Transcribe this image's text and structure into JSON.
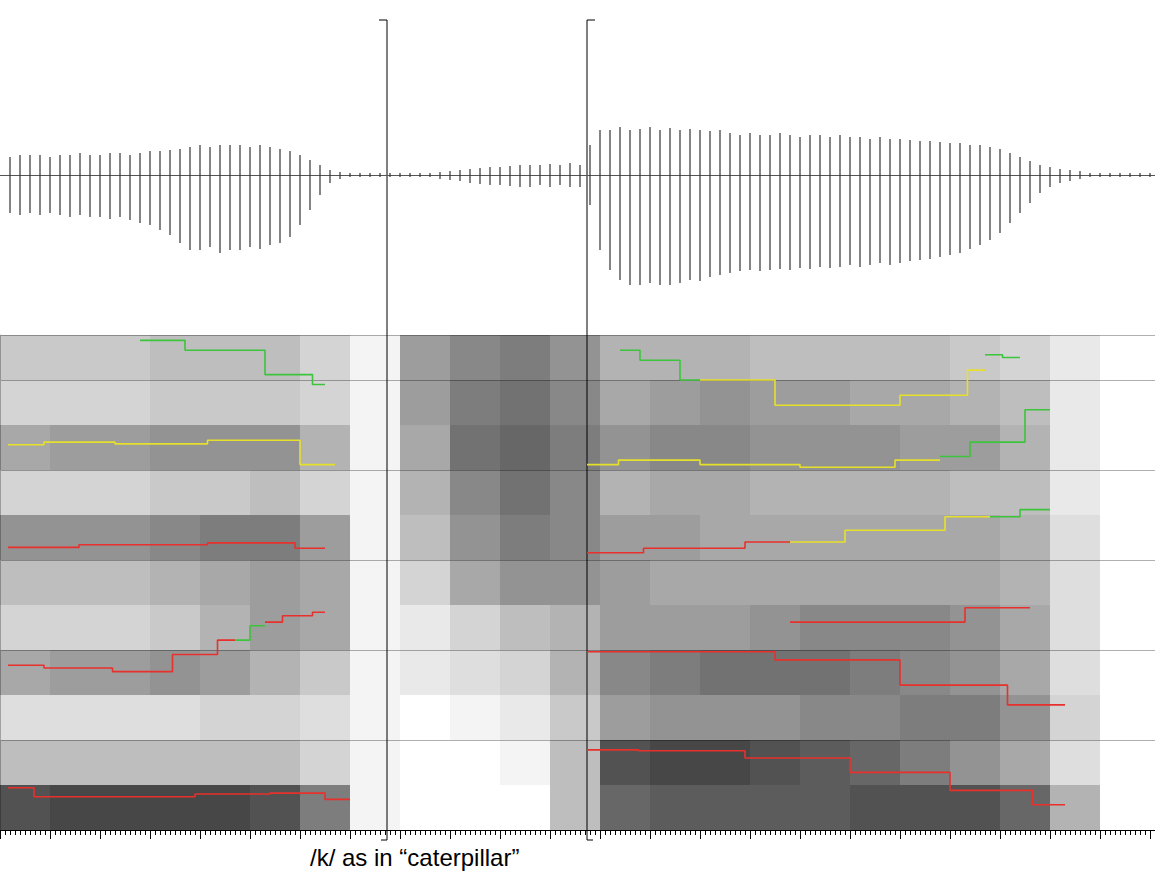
{
  "chart_data": {
    "type": "spectrogram",
    "title": "/k/ as in “caterpillar”",
    "xlim": [
      0,
      1155
    ],
    "xticks": [
      0,
      50,
      100,
      150,
      200,
      250,
      300,
      350,
      400,
      450,
      500,
      550,
      600,
      650,
      700,
      750,
      800,
      850,
      900,
      950,
      1000,
      1050,
      1100,
      1150
    ],
    "ylim": [
      0,
      5500
    ],
    "yticks": [
      0,
      1000,
      2000,
      3000,
      4000,
      5000
    ],
    "grid": true,
    "tick_labels": false,
    "boundaries": [
      387,
      587
    ],
    "spectrogram": {
      "time_bins": [
        0,
        50,
        100,
        150,
        200,
        250,
        300,
        350,
        400,
        450,
        500,
        550,
        600,
        650,
        700,
        750,
        800,
        850,
        900,
        950,
        1000,
        1050,
        1100,
        1150
      ],
      "freq_bins": [
        0,
        500,
        1000,
        1500,
        2000,
        2500,
        3000,
        3500,
        4000,
        4500,
        5000,
        5500
      ],
      "intensity": [
        [
          0.8,
          0.3,
          0.15,
          0.4,
          0.2,
          0.3,
          0.5,
          0.2,
          0.4,
          0.2,
          0.25
        ],
        [
          0.85,
          0.3,
          0.15,
          0.45,
          0.2,
          0.3,
          0.5,
          0.2,
          0.45,
          0.2,
          0.25
        ],
        [
          0.85,
          0.3,
          0.15,
          0.45,
          0.2,
          0.3,
          0.5,
          0.2,
          0.45,
          0.2,
          0.25
        ],
        [
          0.85,
          0.3,
          0.15,
          0.5,
          0.25,
          0.35,
          0.55,
          0.25,
          0.5,
          0.25,
          0.3
        ],
        [
          0.85,
          0.3,
          0.2,
          0.45,
          0.35,
          0.4,
          0.6,
          0.25,
          0.5,
          0.25,
          0.3
        ],
        [
          0.8,
          0.3,
          0.2,
          0.35,
          0.45,
          0.45,
          0.6,
          0.3,
          0.5,
          0.25,
          0.3
        ],
        [
          0.6,
          0.2,
          0.15,
          0.25,
          0.4,
          0.4,
          0.45,
          0.2,
          0.35,
          0.2,
          0.2
        ],
        [
          0.05,
          0.05,
          0.05,
          0.05,
          0.05,
          0.05,
          0.05,
          0.05,
          0.05,
          0.05,
          0.05
        ],
        [
          0,
          0,
          0,
          0.1,
          0.1,
          0.2,
          0.3,
          0.35,
          0.4,
          0.45,
          0.45
        ],
        [
          0,
          0,
          0.05,
          0.15,
          0.2,
          0.4,
          0.5,
          0.55,
          0.65,
          0.6,
          0.55
        ],
        [
          0,
          0.05,
          0.1,
          0.2,
          0.3,
          0.5,
          0.6,
          0.65,
          0.7,
          0.65,
          0.6
        ],
        [
          0.3,
          0.3,
          0.25,
          0.35,
          0.35,
          0.5,
          0.55,
          0.55,
          0.6,
          0.55,
          0.5
        ],
        [
          0.7,
          0.8,
          0.45,
          0.55,
          0.45,
          0.45,
          0.45,
          0.35,
          0.5,
          0.4,
          0.35
        ],
        [
          0.75,
          0.85,
          0.5,
          0.6,
          0.45,
          0.4,
          0.45,
          0.4,
          0.55,
          0.45,
          0.35
        ],
        [
          0.75,
          0.85,
          0.5,
          0.65,
          0.45,
          0.4,
          0.4,
          0.4,
          0.55,
          0.5,
          0.35
        ],
        [
          0.75,
          0.8,
          0.5,
          0.65,
          0.5,
          0.4,
          0.4,
          0.35,
          0.5,
          0.45,
          0.3
        ],
        [
          0.75,
          0.75,
          0.55,
          0.65,
          0.55,
          0.4,
          0.4,
          0.35,
          0.5,
          0.45,
          0.3
        ],
        [
          0.8,
          0.7,
          0.55,
          0.6,
          0.55,
          0.4,
          0.4,
          0.35,
          0.5,
          0.4,
          0.3
        ],
        [
          0.8,
          0.6,
          0.6,
          0.55,
          0.55,
          0.4,
          0.4,
          0.35,
          0.45,
          0.4,
          0.3
        ],
        [
          0.8,
          0.5,
          0.6,
          0.5,
          0.5,
          0.4,
          0.4,
          0.3,
          0.45,
          0.35,
          0.25
        ],
        [
          0.7,
          0.4,
          0.5,
          0.4,
          0.4,
          0.35,
          0.35,
          0.3,
          0.35,
          0.3,
          0.2
        ],
        [
          0.35,
          0.15,
          0.2,
          0.15,
          0.15,
          0.15,
          0.15,
          0.1,
          0.1,
          0.1,
          0.1
        ],
        [
          0,
          0,
          0,
          0,
          0,
          0,
          0,
          0,
          0,
          0,
          0
        ]
      ]
    },
    "waveform": {
      "ylim": [
        -1.3,
        0.6
      ],
      "x": [
        10,
        20,
        30,
        40,
        50,
        60,
        70,
        80,
        90,
        100,
        110,
        120,
        130,
        140,
        150,
        160,
        170,
        180,
        190,
        200,
        210,
        220,
        230,
        240,
        250,
        260,
        270,
        280,
        290,
        300,
        310,
        320,
        330,
        340,
        350,
        360,
        370,
        380,
        390,
        400,
        410,
        420,
        430,
        440,
        450,
        460,
        470,
        480,
        490,
        500,
        510,
        520,
        530,
        540,
        550,
        560,
        570,
        580,
        590,
        600,
        610,
        620,
        630,
        640,
        650,
        660,
        670,
        680,
        690,
        700,
        710,
        720,
        730,
        740,
        750,
        760,
        770,
        780,
        790,
        800,
        810,
        820,
        830,
        840,
        850,
        860,
        870,
        880,
        890,
        900,
        910,
        920,
        930,
        940,
        950,
        960,
        970,
        980,
        990,
        1000,
        1010,
        1020,
        1030,
        1040,
        1050,
        1060,
        1070,
        1080,
        1090,
        1100,
        1110,
        1120,
        1130,
        1140,
        1150
      ],
      "max": [
        0.18,
        0.2,
        0.2,
        0.2,
        0.18,
        0.2,
        0.2,
        0.22,
        0.2,
        0.2,
        0.22,
        0.22,
        0.2,
        0.22,
        0.24,
        0.24,
        0.25,
        0.26,
        0.28,
        0.3,
        0.28,
        0.3,
        0.3,
        0.3,
        0.28,
        0.3,
        0.28,
        0.26,
        0.24,
        0.2,
        0.15,
        0.1,
        0.05,
        0.03,
        0.02,
        0.02,
        0.02,
        0.02,
        0.02,
        0.02,
        0.02,
        0.02,
        0.02,
        0.03,
        0.04,
        0.05,
        0.06,
        0.07,
        0.08,
        0.08,
        0.09,
        0.1,
        0.1,
        0.1,
        0.11,
        0.1,
        0.12,
        0.1,
        0.3,
        0.45,
        0.45,
        0.48,
        0.45,
        0.46,
        0.48,
        0.45,
        0.47,
        0.45,
        0.46,
        0.45,
        0.44,
        0.45,
        0.42,
        0.4,
        0.42,
        0.4,
        0.4,
        0.42,
        0.4,
        0.38,
        0.4,
        0.4,
        0.38,
        0.4,
        0.38,
        0.38,
        0.36,
        0.38,
        0.36,
        0.36,
        0.35,
        0.34,
        0.34,
        0.33,
        0.32,
        0.32,
        0.3,
        0.3,
        0.28,
        0.26,
        0.22,
        0.18,
        0.14,
        0.1,
        0.08,
        0.06,
        0.05,
        0.04,
        0.02,
        0.02,
        0.02,
        0.02,
        0.02,
        0.02,
        0.02
      ],
      "min": [
        -0.38,
        -0.4,
        -0.38,
        -0.4,
        -0.38,
        -0.4,
        -0.42,
        -0.4,
        -0.42,
        -0.42,
        -0.44,
        -0.42,
        -0.45,
        -0.48,
        -0.5,
        -0.55,
        -0.6,
        -0.68,
        -0.75,
        -0.75,
        -0.72,
        -0.78,
        -0.75,
        -0.75,
        -0.72,
        -0.74,
        -0.7,
        -0.68,
        -0.62,
        -0.5,
        -0.35,
        -0.2,
        -0.08,
        -0.04,
        -0.02,
        -0.02,
        -0.02,
        -0.02,
        -0.02,
        -0.02,
        -0.02,
        -0.02,
        -0.02,
        -0.04,
        -0.05,
        -0.06,
        -0.08,
        -0.09,
        -0.1,
        -0.1,
        -0.11,
        -0.12,
        -0.12,
        -0.1,
        -0.12,
        -0.1,
        -0.12,
        -0.12,
        -0.3,
        -0.75,
        -0.95,
        -1.05,
        -1.1,
        -1.1,
        -1.08,
        -1.1,
        -1.1,
        -1.08,
        -1.05,
        -1.06,
        -1.02,
        -1.0,
        -0.98,
        -0.96,
        -0.95,
        -0.96,
        -0.95,
        -0.94,
        -0.95,
        -0.93,
        -0.94,
        -0.92,
        -0.93,
        -0.92,
        -0.9,
        -0.92,
        -0.9,
        -0.88,
        -0.9,
        -0.88,
        -0.86,
        -0.85,
        -0.84,
        -0.82,
        -0.8,
        -0.78,
        -0.74,
        -0.7,
        -0.65,
        -0.58,
        -0.48,
        -0.38,
        -0.28,
        -0.18,
        -0.12,
        -0.08,
        -0.06,
        -0.04,
        -0.02,
        -0.02,
        -0.02,
        -0.02,
        -0.02,
        -0.02,
        -0.02
      ]
    },
    "series": [
      {
        "color": "#e8302c",
        "x": [
          8,
          60,
          150,
          240,
          300,
          350
        ],
        "values": [
          470,
          370,
          370,
          400,
          410,
          340
        ]
      },
      {
        "color": "#e8302c",
        "x": [
          8,
          80,
          145,
          200,
          235
        ],
        "values": [
          1830,
          1800,
          1760,
          1950,
          2110
        ]
      },
      {
        "color": "#3cc43c",
        "x": [
          235,
          265
        ],
        "values": [
          2110,
          2270
        ]
      },
      {
        "color": "#e8302c",
        "x": [
          265,
          300,
          325
        ],
        "values": [
          2310,
          2380,
          2420
        ]
      },
      {
        "color": "#e8302c",
        "x": [
          8,
          150,
          265,
          325
        ],
        "values": [
          3140,
          3170,
          3190,
          3130
        ]
      },
      {
        "color": "#e6e02a",
        "x": [
          8,
          80,
          150,
          265,
          335
        ],
        "values": [
          4280,
          4310,
          4290,
          4330,
          4060
        ]
      },
      {
        "color": "#3cc43c",
        "x": [
          140,
          230,
          300,
          325
        ],
        "values": [
          5440,
          5330,
          5060,
          4950
        ]
      },
      {
        "color": "#e8302c",
        "x": [
          587,
          690,
          800,
          900,
          1000,
          1065
        ],
        "values": [
          890,
          880,
          800,
          640,
          440,
          280
        ]
      },
      {
        "color": "#e8302c",
        "x": [
          587,
          700,
          850,
          950,
          1065
        ],
        "values": [
          1980,
          1980,
          1890,
          1610,
          1390
        ]
      },
      {
        "color": "#e8302c",
        "x": [
          790,
          900,
          1030
        ],
        "values": [
          2310,
          2310,
          2470
        ]
      },
      {
        "color": "#e8302c",
        "x": [
          587,
          700,
          790
        ],
        "values": [
          3080,
          3130,
          3200
        ]
      },
      {
        "color": "#e6e02a",
        "x": [
          790,
          900,
          990
        ],
        "values": [
          3200,
          3330,
          3480
        ]
      },
      {
        "color": "#3cc43c",
        "x": [
          990,
          1050
        ],
        "values": [
          3480,
          3560
        ]
      },
      {
        "color": "#e6e02a",
        "x": [
          587,
          650,
          750,
          850,
          940
        ],
        "values": [
          4060,
          4110,
          4060,
          4030,
          4110
        ]
      },
      {
        "color": "#3cc43c",
        "x": [
          940,
          1000,
          1050
        ],
        "values": [
          4150,
          4310,
          4670
        ]
      },
      {
        "color": "#3cc43c",
        "x": [
          620,
          660,
          700
        ],
        "values": [
          5330,
          5220,
          5000
        ]
      },
      {
        "color": "#e6e02a",
        "x": [
          700,
          850,
          950,
          985
        ],
        "values": [
          5000,
          4720,
          4830,
          5110
        ]
      },
      {
        "color": "#3cc43c",
        "x": [
          985,
          1020
        ],
        "values": [
          5280,
          5250
        ]
      }
    ]
  }
}
